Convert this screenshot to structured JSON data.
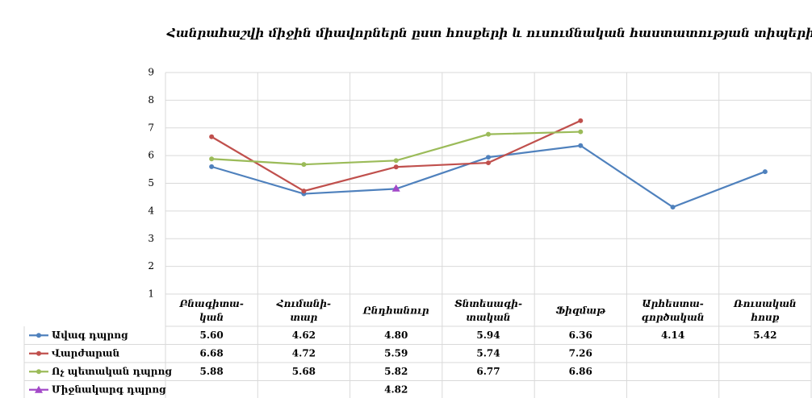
{
  "chart_data": {
    "type": "line",
    "title": "Հանրահաշվի միջին միավորներն ըստ հոսքերի և ուսումնական հաստատության տիպերի",
    "categories": [
      [
        "Բնագիտա-",
        "կան"
      ],
      [
        "Հումանի-",
        "տար"
      ],
      [
        "Ընդհանուր"
      ],
      [
        "Տնտեսագի-",
        "տական"
      ],
      [
        "Ֆիզմաթ"
      ],
      [
        "Արհեստա-",
        "գործական"
      ],
      [
        "Ռուսական",
        "հոսք"
      ]
    ],
    "series": [
      {
        "name": "Ավագ դպրոց",
        "color": "#4f81bd",
        "marker": "circle",
        "values": [
          5.6,
          4.62,
          4.8,
          5.94,
          6.36,
          4.14,
          5.42
        ],
        "value_labels": [
          "5.60",
          "4.62",
          "4.80",
          "5.94",
          "6.36",
          "4.14",
          "5.42"
        ]
      },
      {
        "name": "Վարժարան",
        "color": "#c0504d",
        "marker": "circle",
        "values": [
          6.68,
          4.72,
          5.59,
          5.74,
          7.26,
          null,
          null
        ],
        "value_labels": [
          "6.68",
          "4.72",
          "5.59",
          "5.74",
          "7.26",
          null,
          null
        ]
      },
      {
        "name": "Ոչ պետական դպրոց",
        "color": "#9bbb59",
        "marker": "circle",
        "values": [
          5.88,
          5.68,
          5.82,
          6.77,
          6.86,
          null,
          null
        ],
        "value_labels": [
          "5.88",
          "5.68",
          "5.82",
          "6.77",
          "6.86",
          null,
          null
        ]
      },
      {
        "name": "Միջնակարգ դպրոց",
        "color": "#a349c8",
        "marker": "triangle",
        "values": [
          null,
          null,
          4.82,
          null,
          null,
          null,
          null
        ],
        "value_labels": [
          null,
          null,
          "4.82",
          null,
          null,
          null,
          null
        ]
      }
    ],
    "ylim": [
      1,
      9
    ],
    "yticks": [
      1,
      2,
      3,
      4,
      5,
      6,
      7,
      8,
      9
    ],
    "grid": true
  }
}
